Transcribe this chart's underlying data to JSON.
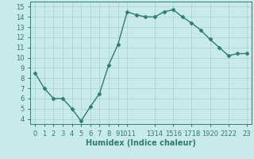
{
  "x": [
    0,
    1,
    2,
    3,
    4,
    5,
    6,
    7,
    8,
    9,
    10,
    11,
    12,
    13,
    14,
    15,
    16,
    17,
    18,
    19,
    20,
    21,
    22,
    23
  ],
  "y": [
    8.5,
    7.0,
    6.0,
    6.0,
    5.0,
    3.8,
    5.2,
    6.5,
    9.3,
    11.3,
    14.5,
    14.2,
    14.0,
    14.0,
    14.5,
    14.7,
    14.0,
    13.4,
    12.7,
    11.8,
    11.0,
    10.2,
    10.4,
    10.4
  ],
  "line_color": "#2e7d6e",
  "marker": "D",
  "marker_size": 2.5,
  "bg_color": "#c8eae8",
  "grid_color": "#b0d4d0",
  "xlabel": "Humidex (Indice chaleur)",
  "ylim": [
    3.5,
    15.5
  ],
  "xlim": [
    -0.5,
    23.5
  ],
  "yticks": [
    4,
    5,
    6,
    7,
    8,
    9,
    10,
    11,
    12,
    13,
    14,
    15
  ],
  "tick_pos": [
    0,
    1,
    2,
    3,
    4,
    5,
    6,
    7,
    8,
    9,
    10,
    13,
    15,
    17,
    19,
    21,
    23
  ],
  "tick_lab": [
    "0",
    "1",
    "2",
    "3",
    "4",
    "5",
    "6",
    "7",
    "8",
    "9",
    "1011",
    "1314",
    "1516",
    "1718",
    "1920",
    "2122",
    "23"
  ],
  "label_fontsize": 7,
  "tick_fontsize": 6
}
